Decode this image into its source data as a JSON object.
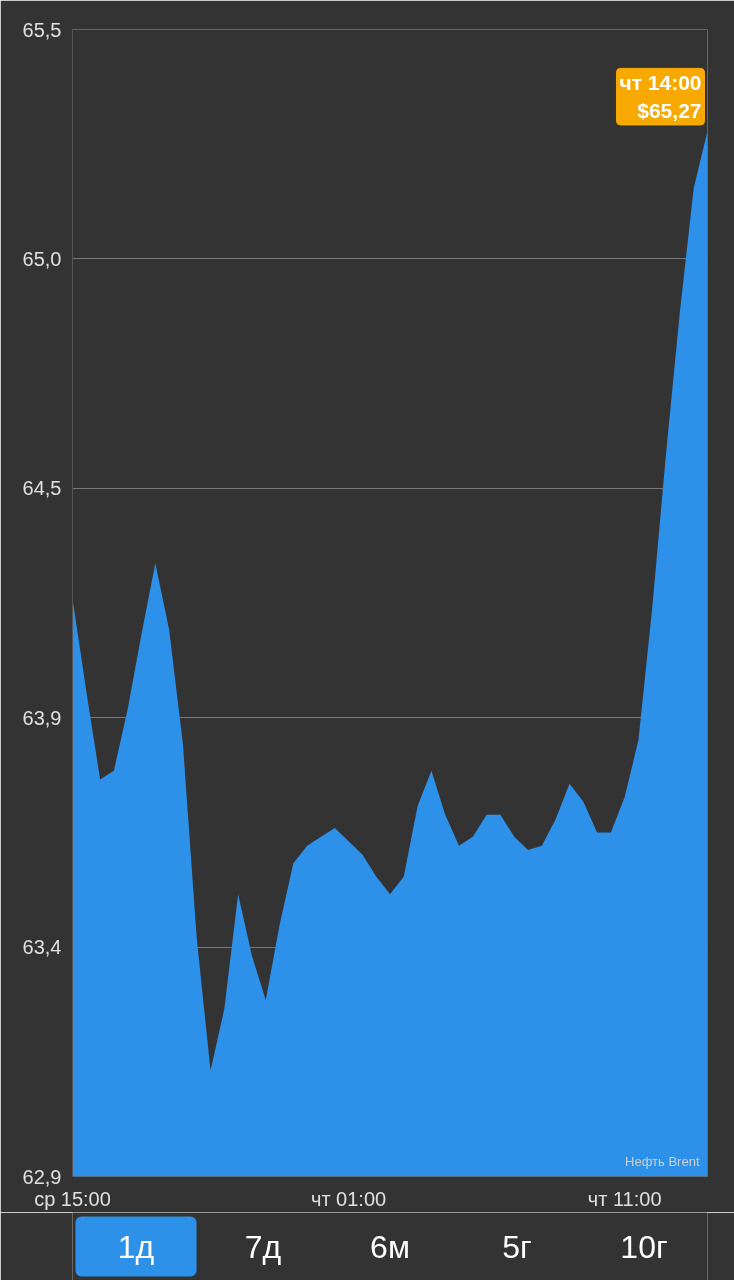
{
  "chart_data": {
    "type": "area",
    "categories": [
      "ср 15:00",
      null,
      null,
      null,
      null,
      null,
      null,
      null,
      null,
      null,
      null,
      null,
      null,
      null,
      null,
      null,
      null,
      null,
      null,
      null,
      "чт 01:00",
      null,
      null,
      null,
      null,
      null,
      null,
      null,
      null,
      null,
      null,
      null,
      null,
      null,
      null,
      null,
      null,
      null,
      null,
      null,
      "чт 11:00",
      null,
      null,
      null,
      null,
      null,
      null
    ],
    "series": [
      {
        "color": "#2d90e9",
        "values": [
          64.21,
          64.0,
          63.8,
          63.82,
          63.96,
          64.13,
          64.29,
          64.14,
          63.88,
          63.44,
          63.14,
          63.28,
          63.54,
          63.4,
          63.3,
          63.47,
          63.61,
          63.65,
          63.67,
          63.69,
          63.66,
          63.63,
          63.58,
          63.54,
          63.58,
          63.74,
          63.82,
          63.72,
          63.65,
          63.67,
          63.72,
          63.72,
          63.67,
          63.64,
          63.65,
          63.71,
          63.79,
          63.75,
          63.68,
          63.68,
          63.76,
          63.89,
          64.19,
          64.54,
          64.86,
          65.14,
          65.27
        ]
      }
    ],
    "ylim": [
      62.9,
      65.5
    ],
    "yticks": [
      {
        "value": 62.9,
        "label": "62,9"
      },
      {
        "value": 63.42,
        "label": "63,4"
      },
      {
        "value": 63.94,
        "label": "63,9"
      },
      {
        "value": 64.46,
        "label": "64,5"
      },
      {
        "value": 64.98,
        "label": "65,0"
      },
      {
        "value": 65.5,
        "label": "65,5"
      }
    ],
    "grid": "y",
    "annotations": [
      "чт 14:00\n$65,27",
      "Нефть Brent",
      "1д",
      "7д",
      "6м",
      "5г",
      "10г"
    ]
  }
}
